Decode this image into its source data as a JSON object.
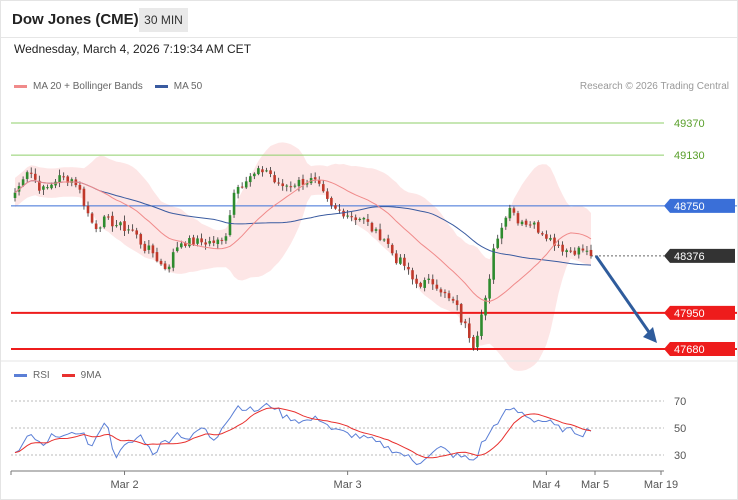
{
  "header": {
    "title": "Dow Jones (CME)",
    "timeframe": "30 MIN",
    "datetime": "Wednesday, March 4, 2026 7:19:34 AM CET"
  },
  "legend": {
    "ma20_label": "MA 20 + Bollinger Bands",
    "ma50_label": "MA 50",
    "copyright": "Research © 2026 Trading Central",
    "ma20_color": "#f08a8a",
    "ma50_color": "#3a5ba0"
  },
  "rsi_legend": {
    "rsi_label": "RSI",
    "ma9_label": "9MA",
    "rsi_color": "#5b7fd6",
    "ma9_color": "#e8312f"
  },
  "colors": {
    "up": "#2e8b2e",
    "down": "#c0392b",
    "resistance": "#8fcf6a",
    "pivot": "#3a6fd8",
    "support": "#ee1c1c",
    "current": "#333333",
    "band": "#fde2e2",
    "arrow": "#2f5c9c"
  },
  "chart_data": [
    {
      "type": "candlestick",
      "ylim": [
        47600,
        49600
      ],
      "x_ticks": [
        "Mar 2",
        "Mar 3",
        "Mar 4",
        "Mar 5",
        "Mar 19"
      ],
      "levels": [
        {
          "value": 49370,
          "label": "49370",
          "kind": "resistance"
        },
        {
          "value": 49130,
          "label": "49130",
          "kind": "resistance"
        },
        {
          "value": 48750,
          "label": "48750",
          "kind": "pivot"
        },
        {
          "value": 48376,
          "label": "48376",
          "kind": "current"
        },
        {
          "value": 47950,
          "label": "47950",
          "kind": "support"
        },
        {
          "value": 47680,
          "label": "47680",
          "kind": "support"
        }
      ],
      "close_keys": [
        [
          0,
          48850
        ],
        [
          3,
          49020
        ],
        [
          7,
          48870
        ],
        [
          11,
          48960
        ],
        [
          14,
          48950
        ],
        [
          20,
          48600
        ],
        [
          22,
          48640
        ],
        [
          28,
          48580
        ],
        [
          33,
          48420
        ],
        [
          37,
          48290
        ],
        [
          41,
          48480
        ],
        [
          48,
          48480
        ],
        [
          51,
          48480
        ],
        [
          55,
          48920
        ],
        [
          62,
          49020
        ],
        [
          65,
          48900
        ],
        [
          73,
          48940
        ],
        [
          79,
          48720
        ],
        [
          85,
          48660
        ],
        [
          90,
          48530
        ],
        [
          95,
          48330
        ],
        [
          99,
          48170
        ],
        [
          103,
          48180
        ],
        [
          108,
          48030
        ],
        [
          111,
          47850
        ],
        [
          113,
          47720
        ],
        [
          116,
          48060
        ],
        [
          119,
          48530
        ],
        [
          122,
          48750
        ],
        [
          124,
          48650
        ],
        [
          127,
          48620
        ],
        [
          130,
          48560
        ],
        [
          133,
          48480
        ],
        [
          136,
          48420
        ],
        [
          140,
          48420
        ],
        [
          142,
          48376
        ]
      ],
      "forecast": {
        "from": 48376,
        "to": 47680
      }
    },
    {
      "type": "line",
      "name": "RSI",
      "ylim": [
        20,
        80
      ],
      "y_ticks": [
        70,
        50,
        30
      ],
      "rsi_keys": [
        [
          0,
          31
        ],
        [
          4,
          44
        ],
        [
          7,
          36
        ],
        [
          10,
          46
        ],
        [
          13,
          43
        ],
        [
          16,
          48
        ],
        [
          19,
          36
        ],
        [
          22,
          55
        ],
        [
          25,
          30
        ],
        [
          28,
          38
        ],
        [
          31,
          44
        ],
        [
          34,
          32
        ],
        [
          37,
          40
        ],
        [
          40,
          46
        ],
        [
          43,
          42
        ],
        [
          46,
          50
        ],
        [
          49,
          42
        ],
        [
          52,
          55
        ],
        [
          55,
          66
        ],
        [
          59,
          63
        ],
        [
          63,
          67
        ],
        [
          67,
          58
        ],
        [
          71,
          55
        ],
        [
          75,
          57
        ],
        [
          79,
          48
        ],
        [
          83,
          45
        ],
        [
          87,
          42
        ],
        [
          90,
          38
        ],
        [
          93,
          34
        ],
        [
          96,
          30
        ],
        [
          99,
          24
        ],
        [
          102,
          30
        ],
        [
          105,
          35
        ],
        [
          108,
          30
        ],
        [
          111,
          28
        ],
        [
          113,
          26
        ],
        [
          116,
          42
        ],
        [
          119,
          55
        ],
        [
          122,
          64
        ],
        [
          125,
          61
        ],
        [
          128,
          56
        ],
        [
          131,
          55
        ],
        [
          134,
          50
        ],
        [
          137,
          48
        ],
        [
          140,
          46
        ],
        [
          142,
          50
        ]
      ]
    }
  ]
}
